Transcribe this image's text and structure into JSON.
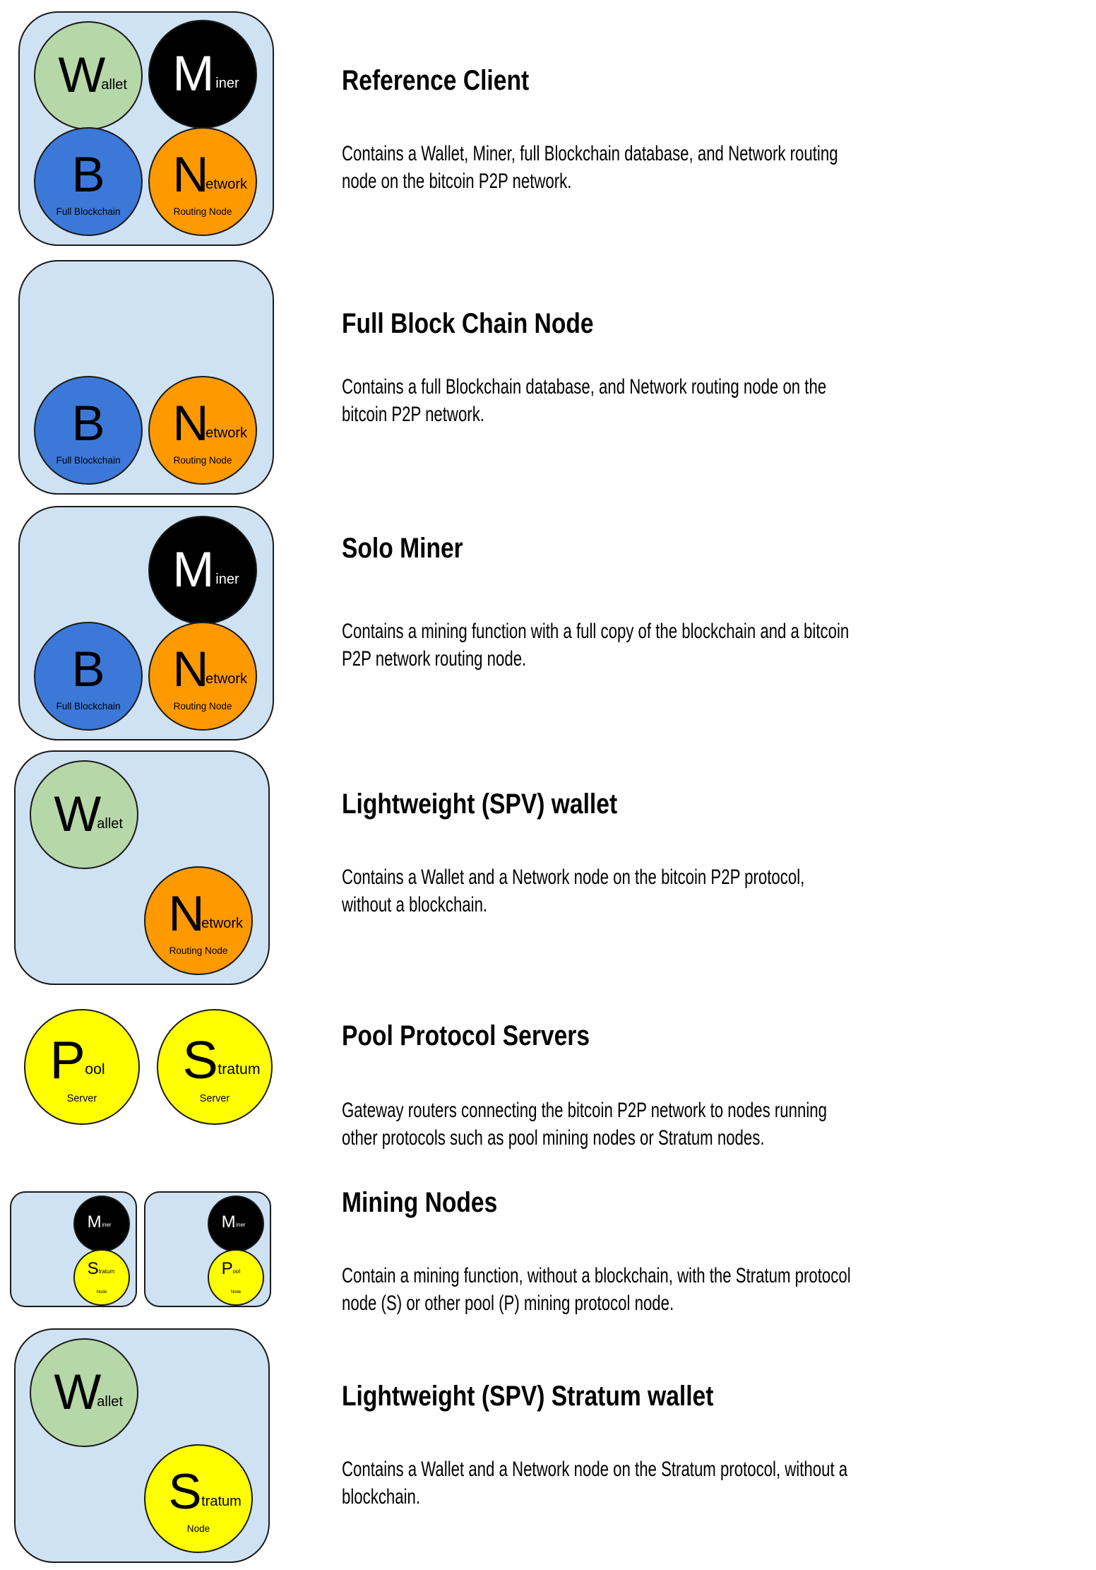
{
  "colors": {
    "box_fill": "#cfe2f3",
    "wallet": "#b6d7a8",
    "miner": "#000000",
    "blockchain": "#3c78d8",
    "network": "#ff9900",
    "pool_stratum": "#ffff00"
  },
  "node_labels": {
    "wallet": {
      "letter": "W",
      "rest": "allet",
      "sub": ""
    },
    "miner": {
      "letter": "M",
      "rest": "iner",
      "sub": ""
    },
    "blockchain": {
      "letter": "B",
      "rest": "",
      "sub": "Full Blockchain"
    },
    "network": {
      "letter": "N",
      "rest": "etwork",
      "sub": "Routing Node"
    },
    "pool_server": {
      "letter": "P",
      "rest": "ool",
      "sub": "Server"
    },
    "stratum_server": {
      "letter": "S",
      "rest": "tratum",
      "sub": "Server"
    },
    "pool_node": {
      "letter": "P",
      "rest": "ool",
      "sub": "Node"
    },
    "stratum_node": {
      "letter": "S",
      "rest": "tratum",
      "sub": "Node"
    }
  },
  "rows": [
    {
      "title": "Reference Client",
      "description": [
        "Contains a Wallet, Miner, full Blockchain database, and Network routing",
        "node on the bitcoin P2P network."
      ]
    },
    {
      "title": "Full Block Chain Node",
      "description": [
        "Contains a full Blockchain database, and Network routing node on the",
        "bitcoin P2P network."
      ]
    },
    {
      "title": "Solo Miner",
      "description": [
        "Contains a mining function with a full copy of the blockchain and a bitcoin",
        "P2P network routing node."
      ]
    },
    {
      "title": "Lightweight (SPV) wallet",
      "description": [
        "Contains a Wallet and a Network node on the bitcoin P2P protocol,",
        "without a blockchain."
      ]
    },
    {
      "title": "Pool Protocol Servers",
      "description": [
        "Gateway routers connecting the bitcoin P2P network to nodes running",
        "other protocols such as pool mining nodes or Stratum nodes."
      ]
    },
    {
      "title": "Mining Nodes",
      "description": [
        "Contain a mining function, without a blockchain, with the Stratum protocol",
        "node (S) or other pool (P) mining protocol node."
      ]
    },
    {
      "title": "Lightweight (SPV) Stratum wallet",
      "description": [
        "Contains a Wallet and a Network node on the Stratum protocol, without a",
        "blockchain."
      ]
    }
  ]
}
